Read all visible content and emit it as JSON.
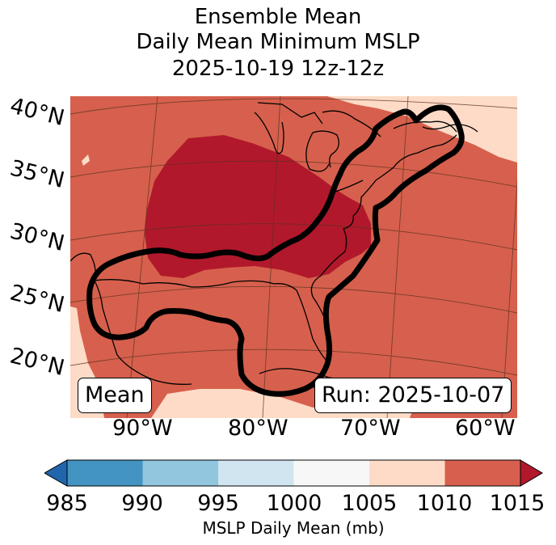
{
  "title": {
    "line1": "Ensemble Mean",
    "line2": "Daily Mean Minimum MSLP",
    "line3": "2025-10-19 12z-12z"
  },
  "map": {
    "lat_labels": [
      "40°N",
      "35°N",
      "30°N",
      "25°N",
      "20°N"
    ],
    "lon_labels": [
      "90°W",
      "80°W",
      "70°W",
      "60°W"
    ],
    "mean_box": "Mean",
    "run_box": "Run: 2025-10-07",
    "colors": {
      "c1005_1010": "#fddbc7",
      "c1010_1015": "#d6604d",
      "c1015_plus": "#b2182b",
      "contour": "#000000"
    }
  },
  "colorbar": {
    "label": "MSLP Daily Mean (mb)",
    "ticks": [
      "985",
      "990",
      "995",
      "1000",
      "1005",
      "1010",
      "1015"
    ],
    "colors": [
      "#2166ac",
      "#4393c3",
      "#92c5de",
      "#d1e5f0",
      "#f7f7f7",
      "#fddbc7",
      "#d6604d",
      "#b2182b"
    ]
  }
}
